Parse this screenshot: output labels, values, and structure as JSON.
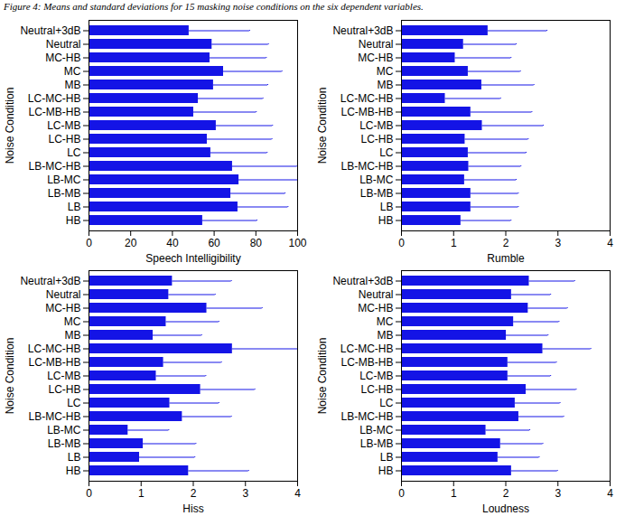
{
  "title": "Figure 4: Means and standard deviations for 15 masking noise conditions on the six dependent variables.",
  "chart_data": [
    {
      "type": "bar",
      "orientation": "horizontal",
      "grid": false,
      "color": "#1414e6",
      "xlabel": "Speech Intelligibility",
      "ylabel": "Noise Condition",
      "categories": [
        "Neutral+3dB",
        "Neutral",
        "MC-HB",
        "MC",
        "MB",
        "LC-MC-HB",
        "LC-MB-HB",
        "LC-MB",
        "LC-HB",
        "LC",
        "LB-MC-HB",
        "LB-MC",
        "LB-MB",
        "LB",
        "HB"
      ],
      "values": [
        48,
        59,
        58,
        64.5,
        59.7,
        52.4,
        50.2,
        61,
        56.7,
        58.4,
        68.8,
        71.9,
        68,
        71.4,
        54.5
      ],
      "errors": [
        29,
        27,
        27,
        28,
        26,
        31,
        30,
        27,
        31,
        27,
        31,
        30,
        26,
        24,
        26
      ],
      "xlim": [
        0,
        100
      ],
      "xticks": [
        0,
        20,
        40,
        60,
        80,
        100
      ]
    },
    {
      "type": "bar",
      "orientation": "horizontal",
      "grid": false,
      "color": "#1414e6",
      "xlabel": "Rumble",
      "ylabel": "Noise Condition",
      "categories": [
        "Neutral+3dB",
        "Neutral",
        "MC-HB",
        "MC",
        "MB",
        "LC-MC-HB",
        "LC-MB-HB",
        "LC-MB",
        "LC-HB",
        "LC",
        "LB-MC-HB",
        "LB-MC",
        "LB-MB",
        "LB",
        "HB"
      ],
      "values": [
        1.66,
        1.19,
        1.03,
        1.28,
        1.54,
        0.84,
        1.33,
        1.55,
        1.22,
        1.28,
        1.29,
        1.21,
        1.33,
        1.33,
        1.14
      ],
      "errors": [
        1.13,
        1.01,
        1.07,
        1.0,
        1.0,
        1.06,
        1.17,
        1.17,
        1.21,
        1.11,
        1.0,
        0.99,
        0.91,
        0.91,
        0.96
      ],
      "xlim": [
        0,
        4
      ],
      "xticks": [
        0,
        1,
        2,
        3,
        4
      ]
    },
    {
      "type": "bar",
      "orientation": "horizontal",
      "grid": false,
      "color": "#1414e6",
      "xlabel": "Hiss",
      "ylabel": "Noise Condition",
      "categories": [
        "Neutral+3dB",
        "Neutral",
        "MC-HB",
        "MC",
        "MB",
        "LC-MC-HB",
        "LC-MB-HB",
        "LC-MB",
        "LC-HB",
        "LC",
        "LB-MC-HB",
        "LB-MC",
        "LB-MB",
        "LB",
        "HB"
      ],
      "values": [
        1.6,
        1.53,
        2.26,
        1.48,
        1.23,
        2.75,
        1.43,
        1.29,
        2.14,
        1.55,
        1.79,
        0.75,
        1.04,
        0.97,
        1.91
      ],
      "errors": [
        1.13,
        0.89,
        1.06,
        1.01,
        0.93,
        1.3,
        1.11,
        0.95,
        1.04,
        0.94,
        0.94,
        0.78,
        1.01,
        1.06,
        1.15
      ],
      "xlim": [
        0,
        4
      ],
      "xticks": [
        0,
        1,
        2,
        3,
        4
      ]
    },
    {
      "type": "bar",
      "orientation": "horizontal",
      "grid": false,
      "color": "#1414e6",
      "xlabel": "Loudness",
      "ylabel": "Noise Condition",
      "categories": [
        "Neutral+3dB",
        "Neutral",
        "MC-HB",
        "MC",
        "MB",
        "LC-MC-HB",
        "LC-MB-HB",
        "LC-MB",
        "LC-HB",
        "LC",
        "LB-MC-HB",
        "LB-MC",
        "LB-MB",
        "LB",
        "HB"
      ],
      "values": [
        2.45,
        2.11,
        2.43,
        2.15,
        2.01,
        2.71,
        2.04,
        2.04,
        2.39,
        2.18,
        2.25,
        1.62,
        1.9,
        1.85,
        2.11
      ],
      "errors": [
        0.87,
        0.75,
        0.75,
        0.87,
        0.8,
        0.92,
        0.93,
        0.82,
        0.96,
        0.86,
        0.86,
        0.84,
        0.81,
        0.79,
        0.88
      ],
      "xlim": [
        0,
        4
      ],
      "xticks": [
        0,
        1,
        2,
        3,
        4
      ]
    }
  ]
}
